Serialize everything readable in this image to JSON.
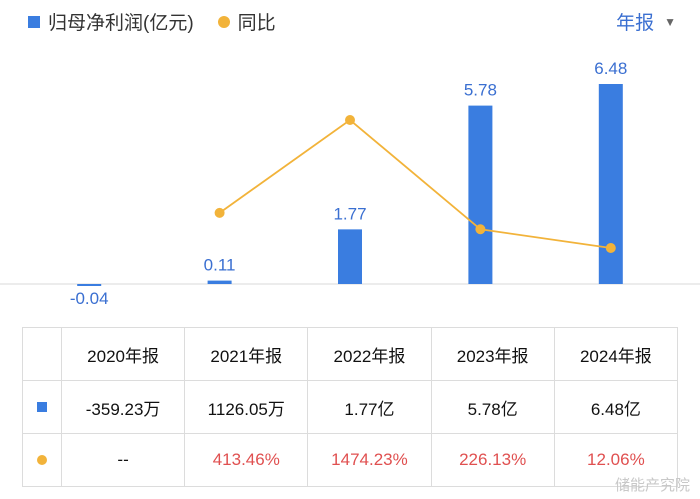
{
  "legend": {
    "bar_label": "归母净利润(亿元)",
    "line_label": "同比"
  },
  "period_selector": {
    "label": "年报"
  },
  "chart_data": {
    "type": "bar",
    "categories": [
      "2020年报",
      "2021年报",
      "2022年报",
      "2023年报",
      "2024年报"
    ],
    "series": [
      {
        "name": "归母净利润(亿元)",
        "type": "bar",
        "values": [
          -0.04,
          0.11,
          1.77,
          5.78,
          6.48
        ],
        "color": "#3a7de0"
      },
      {
        "name": "同比",
        "type": "line",
        "values": [
          null,
          413.46,
          1474.23,
          226.13,
          12.06
        ],
        "color": "#f2b33a"
      }
    ],
    "bar_labels": [
      "-0.04",
      "0.11",
      "1.77",
      "5.78",
      "6.48"
    ]
  },
  "table": {
    "headers": [
      "2020年报",
      "2021年报",
      "2022年报",
      "2023年报",
      "2024年报"
    ],
    "profit_row": [
      "-359.23万",
      "1126.05万",
      "1.77亿",
      "5.78亿",
      "6.48亿"
    ],
    "yoy_row": [
      "--",
      "413.46%",
      "1474.23%",
      "226.13%",
      "12.06%"
    ]
  },
  "watermark": "储能产究院"
}
